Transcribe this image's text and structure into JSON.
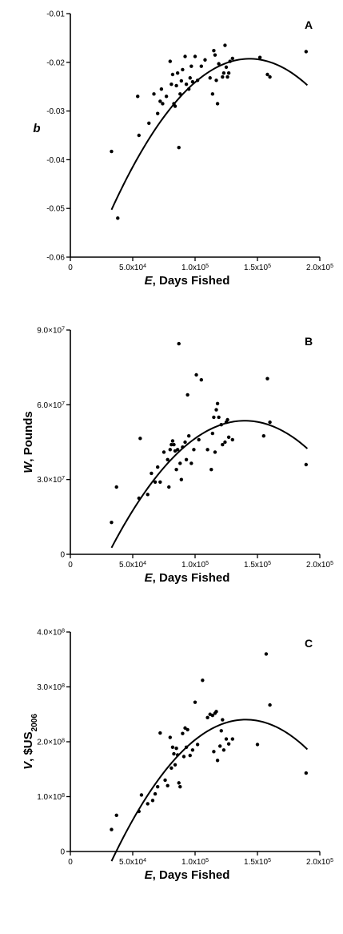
{
  "chart_data": [
    {
      "type": "scatter",
      "panel_label": "A",
      "ylabel": "b",
      "xlabel_var": "E",
      "xlabel": ", Days Fished",
      "xlim": [
        0,
        200000
      ],
      "ylim": [
        -0.06,
        -0.01
      ],
      "x_ticks": [
        {
          "value": 0,
          "mant": "0",
          "exp": ""
        },
        {
          "value": 50000,
          "mant": "5.0x10",
          "exp": "4"
        },
        {
          "value": 100000,
          "mant": "1.0x10",
          "exp": "5"
        },
        {
          "value": 150000,
          "mant": "1.5x10",
          "exp": "5"
        },
        {
          "value": 200000,
          "mant": "2.0x10",
          "exp": "5"
        }
      ],
      "y_ticks": [
        {
          "value": -0.06,
          "mant": "-0.06",
          "exp": ""
        },
        {
          "value": -0.05,
          "mant": "-0.05",
          "exp": ""
        },
        {
          "value": -0.04,
          "mant": "-0.04",
          "exp": ""
        },
        {
          "value": -0.03,
          "mant": "-0.03",
          "exp": ""
        },
        {
          "value": -0.02,
          "mant": "-0.02",
          "exp": ""
        },
        {
          "value": -0.01,
          "mant": "-0.01",
          "exp": ""
        }
      ],
      "points": [
        [
          33000,
          -0.0383
        ],
        [
          38000,
          -0.052
        ],
        [
          55000,
          -0.035
        ],
        [
          54000,
          -0.027
        ],
        [
          63000,
          -0.0325
        ],
        [
          67000,
          -0.0265
        ],
        [
          70000,
          -0.0305
        ],
        [
          72000,
          -0.028
        ],
        [
          73000,
          -0.0255
        ],
        [
          74000,
          -0.0285
        ],
        [
          77000,
          -0.027
        ],
        [
          80000,
          -0.0198
        ],
        [
          81000,
          -0.0245
        ],
        [
          82000,
          -0.0225
        ],
        [
          83000,
          -0.0285
        ],
        [
          84000,
          -0.029
        ],
        [
          85000,
          -0.0248
        ],
        [
          86000,
          -0.0222
        ],
        [
          87000,
          -0.0375
        ],
        [
          88000,
          -0.0265
        ],
        [
          89000,
          -0.0238
        ],
        [
          90000,
          -0.0215
        ],
        [
          92000,
          -0.0188
        ],
        [
          93000,
          -0.0245
        ],
        [
          95000,
          -0.0255
        ],
        [
          96000,
          -0.0232
        ],
        [
          97000,
          -0.0208
        ],
        [
          98000,
          -0.024
        ],
        [
          100000,
          -0.0188
        ],
        [
          102000,
          -0.0237
        ],
        [
          105000,
          -0.0208
        ],
        [
          108000,
          -0.0195
        ],
        [
          112000,
          -0.0232
        ],
        [
          114000,
          -0.0265
        ],
        [
          115000,
          -0.0176
        ],
        [
          116000,
          -0.0185
        ],
        [
          117000,
          -0.0237
        ],
        [
          118000,
          -0.0285
        ],
        [
          119000,
          -0.0203
        ],
        [
          122000,
          -0.023
        ],
        [
          123000,
          -0.0222
        ],
        [
          124000,
          -0.0165
        ],
        [
          125000,
          -0.021
        ],
        [
          126000,
          -0.023
        ],
        [
          127000,
          -0.0222
        ],
        [
          128000,
          -0.0198
        ],
        [
          130000,
          -0.0192
        ],
        [
          152000,
          -0.019
        ],
        [
          158000,
          -0.0225
        ],
        [
          160000,
          -0.023
        ],
        [
          189000,
          -0.0178
        ]
      ],
      "fit": {
        "a": -0.0715,
        "b": 7.27e-07,
        "c": -2.53e-12,
        "x_from": 33000,
        "x_to": 190000
      }
    },
    {
      "type": "scatter",
      "panel_label": "B",
      "ylabel_var": "W",
      "ylabel": ", Pounds",
      "xlabel_var": "E",
      "xlabel": ", Days Fished",
      "xlim": [
        0,
        200000
      ],
      "ylim": [
        0,
        90000000
      ],
      "x_ticks": [
        {
          "value": 0,
          "mant": "0",
          "exp": ""
        },
        {
          "value": 50000,
          "mant": "5.0x10",
          "exp": "4"
        },
        {
          "value": 100000,
          "mant": "1.0x10",
          "exp": "5"
        },
        {
          "value": 150000,
          "mant": "1.5x10",
          "exp": "5"
        },
        {
          "value": 200000,
          "mant": "2.0x10",
          "exp": "5"
        }
      ],
      "y_ticks": [
        {
          "value": 0,
          "mant": "0",
          "exp": ""
        },
        {
          "value": 30000000,
          "mant": "3.0×10",
          "exp": "7"
        },
        {
          "value": 60000000,
          "mant": "6.0×10",
          "exp": "7"
        },
        {
          "value": 90000000,
          "mant": "9.0×10",
          "exp": "7"
        }
      ],
      "points": [
        [
          33000,
          12800000
        ],
        [
          37000,
          27000000
        ],
        [
          55000,
          22500000
        ],
        [
          56000,
          46500000
        ],
        [
          62000,
          24000000
        ],
        [
          65000,
          32500000
        ],
        [
          68000,
          29000000
        ],
        [
          70000,
          35000000
        ],
        [
          72000,
          29000000
        ],
        [
          75000,
          41000000
        ],
        [
          78000,
          38000000
        ],
        [
          79000,
          27000000
        ],
        [
          80000,
          42000000
        ],
        [
          81000,
          44000000
        ],
        [
          82000,
          45500000
        ],
        [
          83000,
          44000000
        ],
        [
          84000,
          41500000
        ],
        [
          85000,
          34000000
        ],
        [
          86000,
          42000000
        ],
        [
          87000,
          84500000
        ],
        [
          88000,
          36500000
        ],
        [
          89000,
          30000000
        ],
        [
          90000,
          43000000
        ],
        [
          92000,
          45000000
        ],
        [
          93000,
          38000000
        ],
        [
          94000,
          64000000
        ],
        [
          95000,
          47500000
        ],
        [
          97000,
          36500000
        ],
        [
          99000,
          42000000
        ],
        [
          101000,
          72000000
        ],
        [
          103000,
          46000000
        ],
        [
          105000,
          70000000
        ],
        [
          110000,
          42000000
        ],
        [
          113000,
          34000000
        ],
        [
          114000,
          48500000
        ],
        [
          115000,
          55000000
        ],
        [
          116000,
          41000000
        ],
        [
          117000,
          58000000
        ],
        [
          118000,
          60500000
        ],
        [
          119000,
          55000000
        ],
        [
          121000,
          52000000
        ],
        [
          122000,
          44000000
        ],
        [
          124000,
          45000000
        ],
        [
          125000,
          53000000
        ],
        [
          126000,
          54000000
        ],
        [
          127000,
          47000000
        ],
        [
          130000,
          46000000
        ],
        [
          155000,
          47500000
        ],
        [
          158000,
          70500000
        ],
        [
          160000,
          53000000
        ],
        [
          189000,
          36000000
        ]
      ],
      "fit": {
        "a": -33700000,
        "b": 1248,
        "c": -0.00446,
        "x_from": 33000,
        "x_to": 190000
      }
    },
    {
      "type": "scatter",
      "panel_label": "C",
      "ylabel_var": "V",
      "ylabel": ", $US",
      "ylabel_sub": "2006",
      "xlabel_var": "E",
      "xlabel": ", Days Fished",
      "xlim": [
        0,
        200000
      ],
      "ylim": [
        0,
        400000000
      ],
      "x_ticks": [
        {
          "value": 0,
          "mant": "0",
          "exp": ""
        },
        {
          "value": 50000,
          "mant": "5.0x10",
          "exp": "4"
        },
        {
          "value": 100000,
          "mant": "1.0x10",
          "exp": "5"
        },
        {
          "value": 150000,
          "mant": "1.5x10",
          "exp": "5"
        },
        {
          "value": 200000,
          "mant": "2.0x10",
          "exp": "5"
        }
      ],
      "y_ticks": [
        {
          "value": 0,
          "mant": "0",
          "exp": ""
        },
        {
          "value": 100000000,
          "mant": "1.0×10",
          "exp": "8"
        },
        {
          "value": 200000000,
          "mant": "2.0×10",
          "exp": "8"
        },
        {
          "value": 300000000,
          "mant": "3.0×10",
          "exp": "8"
        },
        {
          "value": 400000000,
          "mant": "4.0×10",
          "exp": "8"
        }
      ],
      "points": [
        [
          33000,
          40000000
        ],
        [
          37000,
          66000000
        ],
        [
          55000,
          73000000
        ],
        [
          57000,
          103000000
        ],
        [
          62000,
          87000000
        ],
        [
          66000,
          93000000
        ],
        [
          68000,
          105000000
        ],
        [
          70000,
          118000000
        ],
        [
          72000,
          216000000
        ],
        [
          76000,
          130000000
        ],
        [
          78000,
          120000000
        ],
        [
          80000,
          208000000
        ],
        [
          81000,
          152000000
        ],
        [
          82000,
          190000000
        ],
        [
          83000,
          178000000
        ],
        [
          84000,
          158000000
        ],
        [
          85000,
          188000000
        ],
        [
          86000,
          176000000
        ],
        [
          87000,
          125000000
        ],
        [
          88000,
          118000000
        ],
        [
          90000,
          215000000
        ],
        [
          91000,
          173000000
        ],
        [
          92000,
          225000000
        ],
        [
          93000,
          190000000
        ],
        [
          94000,
          222000000
        ],
        [
          96000,
          175000000
        ],
        [
          98000,
          185000000
        ],
        [
          100000,
          272000000
        ],
        [
          102000,
          195000000
        ],
        [
          106000,
          312000000
        ],
        [
          110000,
          244000000
        ],
        [
          112000,
          250000000
        ],
        [
          114000,
          248000000
        ],
        [
          115000,
          182000000
        ],
        [
          116000,
          252000000
        ],
        [
          117000,
          255000000
        ],
        [
          118000,
          166000000
        ],
        [
          120000,
          192000000
        ],
        [
          121000,
          220000000
        ],
        [
          122000,
          240000000
        ],
        [
          123000,
          185000000
        ],
        [
          125000,
          205000000
        ],
        [
          127000,
          196000000
        ],
        [
          130000,
          205000000
        ],
        [
          150000,
          195000000
        ],
        [
          157000,
          360000000
        ],
        [
          160000,
          267000000
        ],
        [
          189000,
          143000000
        ]
      ],
      "fit": {
        "a": -200000000,
        "b": 6260,
        "c": -0.02225,
        "x_from": 33000,
        "x_to": 190000
      }
    }
  ]
}
